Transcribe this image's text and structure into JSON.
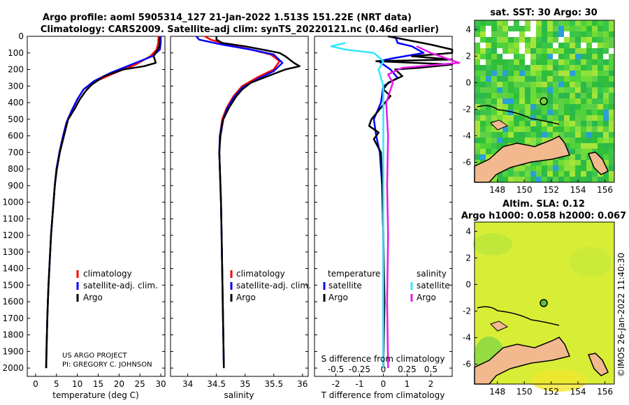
{
  "header": {
    "line1": "Argo profile: aoml 5905314_127 21-Jan-2022 1.513S 151.22E (NRT data)",
    "line2": "Climatology: CARS2009. Satellite-adj clim: synTS_20220121.nc (0.46d earlier)"
  },
  "colors": {
    "climatology": "#ff0000",
    "satellite": "#0000ff",
    "argo": "#000000",
    "sat_diff": "#33e6ff",
    "sal_diff": "#e619e6"
  },
  "chart_data": [
    {
      "type": "line",
      "panel": "temperature",
      "xlabel": "temperature (deg C)",
      "xlim": [
        -2,
        31
      ],
      "xticks": [
        0,
        5,
        10,
        15,
        20,
        25,
        30
      ],
      "ylim": [
        0,
        2050
      ],
      "yticks": [
        0,
        100,
        200,
        300,
        400,
        500,
        600,
        700,
        800,
        900,
        1000,
        1100,
        1200,
        1300,
        1400,
        1500,
        1600,
        1700,
        1800,
        1900,
        2000
      ],
      "legend": [
        "climatology",
        "satellite-adj. clim.",
        "Argo"
      ],
      "series": [
        {
          "name": "climatology",
          "points": [
            [
              29.5,
              0
            ],
            [
              29.4,
              40
            ],
            [
              29.0,
              80
            ],
            [
              27.5,
              120
            ],
            [
              24,
              170
            ],
            [
              19,
              220
            ],
            [
              14.5,
              270
            ],
            [
              11.5,
              320
            ],
            [
              10,
              380
            ],
            [
              8.6,
              450
            ],
            [
              7.4,
              520
            ],
            [
              6.6,
              600
            ],
            [
              5.7,
              700
            ],
            [
              5.0,
              800
            ],
            [
              4.6,
              900
            ],
            [
              4.3,
              1000
            ],
            [
              4.0,
              1100
            ],
            [
              3.7,
              1200
            ],
            [
              3.5,
              1300
            ],
            [
              3.3,
              1400
            ],
            [
              3.1,
              1500
            ],
            [
              2.95,
              1600
            ],
            [
              2.8,
              1700
            ],
            [
              2.7,
              1800
            ],
            [
              2.6,
              1900
            ],
            [
              2.5,
              2000
            ]
          ]
        },
        {
          "name": "satellite-adj. clim.",
          "points": [
            [
              30.0,
              0
            ],
            [
              30.0,
              40
            ],
            [
              29.8,
              80
            ],
            [
              28,
              120
            ],
            [
              23,
              170
            ],
            [
              18,
              220
            ],
            [
              14.0,
              270
            ],
            [
              11.5,
              320
            ],
            [
              10,
              380
            ],
            [
              8.6,
              450
            ],
            [
              7.4,
              520
            ],
            [
              6.6,
              600
            ],
            [
              5.7,
              700
            ],
            [
              5.0,
              800
            ],
            [
              4.6,
              900
            ],
            [
              4.3,
              1000
            ],
            [
              4.0,
              1100
            ],
            [
              3.7,
              1200
            ],
            [
              3.5,
              1300
            ],
            [
              3.3,
              1400
            ],
            [
              3.1,
              1500
            ],
            [
              2.95,
              1600
            ],
            [
              2.8,
              1700
            ],
            [
              2.7,
              1800
            ],
            [
              2.6,
              1900
            ],
            [
              2.5,
              2000
            ]
          ]
        },
        {
          "name": "Argo",
          "points": [
            [
              29.7,
              5
            ],
            [
              29.7,
              60
            ],
            [
              29.0,
              90
            ],
            [
              28.3,
              120
            ],
            [
              28.8,
              160
            ],
            [
              26,
              180
            ],
            [
              21,
              200
            ],
            [
              16.5,
              240
            ],
            [
              13.5,
              290
            ],
            [
              12,
              330
            ],
            [
              10.6,
              380
            ],
            [
              9.3,
              440
            ],
            [
              7.8,
              500
            ],
            [
              7.2,
              560
            ],
            [
              6.6,
              620
            ],
            [
              5.8,
              700
            ],
            [
              5.1,
              800
            ],
            [
              4.6,
              900
            ],
            [
              4.3,
              1000
            ],
            [
              4.0,
              1100
            ],
            [
              3.7,
              1200
            ],
            [
              3.5,
              1300
            ],
            [
              3.3,
              1400
            ],
            [
              3.1,
              1500
            ],
            [
              2.95,
              1600
            ],
            [
              2.8,
              1700
            ],
            [
              2.7,
              1800
            ],
            [
              2.6,
              1900
            ],
            [
              2.55,
              2000
            ]
          ]
        }
      ]
    },
    {
      "type": "line",
      "panel": "salinity",
      "xlabel": "salinity",
      "xlim": [
        33.7,
        36.1
      ],
      "xticks": [
        34,
        34.5,
        35,
        35.5,
        36
      ],
      "ylim": [
        0,
        2050
      ],
      "legend": [
        "climatology",
        "satellite-adj. clim.",
        "Argo"
      ],
      "series": [
        {
          "name": "climatology",
          "points": [
            [
              34.3,
              0
            ],
            [
              34.4,
              20
            ],
            [
              34.7,
              50
            ],
            [
              35.1,
              80
            ],
            [
              35.45,
              110
            ],
            [
              35.6,
              150
            ],
            [
              35.5,
              200
            ],
            [
              35.2,
              250
            ],
            [
              34.95,
              300
            ],
            [
              34.8,
              360
            ],
            [
              34.68,
              430
            ],
            [
              34.6,
              500
            ],
            [
              34.56,
              600
            ],
            [
              34.55,
              700
            ],
            [
              34.56,
              800
            ],
            [
              34.57,
              900
            ],
            [
              34.58,
              1000
            ],
            [
              34.59,
              1200
            ],
            [
              34.6,
              1400
            ],
            [
              34.61,
              1600
            ],
            [
              34.62,
              1800
            ],
            [
              34.63,
              2000
            ]
          ]
        },
        {
          "name": "satellite-adj. clim.",
          "points": [
            [
              34.15,
              0
            ],
            [
              34.2,
              20
            ],
            [
              34.6,
              50
            ],
            [
              35.1,
              80
            ],
            [
              35.5,
              110
            ],
            [
              35.65,
              160
            ],
            [
              35.5,
              210
            ],
            [
              35.2,
              260
            ],
            [
              34.95,
              310
            ],
            [
              34.8,
              370
            ],
            [
              34.68,
              440
            ],
            [
              34.6,
              520
            ],
            [
              34.56,
              600
            ],
            [
              34.55,
              700
            ],
            [
              34.56,
              800
            ],
            [
              34.57,
              900
            ],
            [
              34.58,
              1000
            ],
            [
              34.59,
              1200
            ],
            [
              34.6,
              1400
            ],
            [
              34.61,
              1600
            ],
            [
              34.62,
              1800
            ],
            [
              34.63,
              2000
            ]
          ]
        },
        {
          "name": "Argo",
          "points": [
            [
              34.5,
              0
            ],
            [
              34.5,
              20
            ],
            [
              34.6,
              40
            ],
            [
              35.0,
              60
            ],
            [
              35.3,
              80
            ],
            [
              35.6,
              100
            ],
            [
              35.7,
              120
            ],
            [
              35.85,
              160
            ],
            [
              35.95,
              180
            ],
            [
              35.7,
              200
            ],
            [
              35.4,
              240
            ],
            [
              35.1,
              280
            ],
            [
              34.95,
              320
            ],
            [
              34.85,
              360
            ],
            [
              34.72,
              430
            ],
            [
              34.62,
              500
            ],
            [
              34.57,
              600
            ],
            [
              34.55,
              700
            ],
            [
              34.56,
              800
            ],
            [
              34.57,
              900
            ],
            [
              34.58,
              1000
            ],
            [
              34.59,
              1200
            ],
            [
              34.6,
              1400
            ],
            [
              34.61,
              1600
            ],
            [
              34.62,
              1800
            ],
            [
              34.63,
              2000
            ]
          ]
        }
      ]
    },
    {
      "type": "line",
      "panel": "differences",
      "xlabel": "T difference from climatology",
      "xlabel_top": "S difference from climatology",
      "xlim": [
        -2.9,
        2.9
      ],
      "xticks": [
        -2,
        -1,
        0,
        1,
        2
      ],
      "xticks_s": [
        "-0.5",
        "-0.25",
        "0",
        "0.25",
        "0.5"
      ],
      "ylim": [
        0,
        2050
      ],
      "legend_left_title": "temperature",
      "legend_right_title": "salinity",
      "legend_left": [
        "satellite",
        "Argo"
      ],
      "legend_right": [
        "satellite",
        "Argo"
      ],
      "series": [
        {
          "name": "T satellite",
          "points": [
            [
              0.5,
              0
            ],
            [
              0.6,
              40
            ],
            [
              1.2,
              60
            ],
            [
              1.7,
              100
            ],
            [
              0.5,
              130
            ],
            [
              -0.2,
              150
            ],
            [
              0.3,
              200
            ],
            [
              0.6,
              250
            ],
            [
              0.0,
              300
            ],
            [
              -0.1,
              400
            ],
            [
              -0.4,
              500
            ],
            [
              -0.3,
              600
            ],
            [
              -0.15,
              700
            ],
            [
              -0.05,
              900
            ],
            [
              0,
              1200
            ],
            [
              0,
              1600
            ],
            [
              0,
              2000
            ]
          ]
        },
        {
          "name": "T Argo",
          "points": [
            [
              0.2,
              0
            ],
            [
              2.0,
              50
            ],
            [
              2.9,
              80
            ],
            [
              2.9,
              100
            ],
            [
              1.2,
              120
            ],
            [
              2.9,
              140
            ],
            [
              -0.3,
              150
            ],
            [
              2.9,
              170
            ],
            [
              1.5,
              190
            ],
            [
              0.5,
              200
            ],
            [
              0.8,
              240
            ],
            [
              0.2,
              280
            ],
            [
              0.0,
              320
            ],
            [
              0.3,
              360
            ],
            [
              -0.5,
              500
            ],
            [
              -0.6,
              540
            ],
            [
              -0.2,
              580
            ],
            [
              -0.4,
              620
            ],
            [
              -0.1,
              700
            ],
            [
              -0.05,
              900
            ],
            [
              0,
              1200
            ],
            [
              0.05,
              1600
            ],
            [
              0,
              2000
            ]
          ]
        },
        {
          "name": "S satellite",
          "points": [
            [
              -0.4,
              40
            ],
            [
              -0.55,
              60
            ],
            [
              -0.4,
              80
            ],
            [
              -0.1,
              100
            ],
            [
              0.0,
              150
            ],
            [
              -0.05,
              200
            ],
            [
              0.0,
              300
            ],
            [
              0,
              400
            ],
            [
              0,
              600
            ],
            [
              0,
              900
            ],
            [
              0,
              1200
            ],
            [
              0,
              1600
            ],
            [
              0,
              2000
            ]
          ]
        },
        {
          "name": "S Argo",
          "points": [
            [
              0.35,
              60
            ],
            [
              0.5,
              100
            ],
            [
              0.8,
              160
            ],
            [
              0.2,
              190
            ],
            [
              0.05,
              230
            ],
            [
              0.1,
              280
            ],
            [
              0.03,
              400
            ],
            [
              0.05,
              600
            ],
            [
              0.04,
              900
            ],
            [
              0.05,
              1200
            ],
            [
              0.04,
              1600
            ],
            [
              0.05,
              2000
            ]
          ]
        }
      ]
    }
  ],
  "maps": {
    "sst": {
      "title": "sat. SST: 30 Argo: 30",
      "lon_ticks": [
        "148",
        "150",
        "152",
        "154",
        "156"
      ],
      "lat_ticks": [
        "4",
        "2",
        "0",
        "-2",
        "-4",
        "-6"
      ]
    },
    "sla": {
      "title_line1": "Altim. SLA: 0.12",
      "title_line2": "Argo h1000: 0.058 h2000: 0.067",
      "lon_ticks": [
        "148",
        "150",
        "152",
        "154",
        "156"
      ],
      "lat_ticks": [
        "4",
        "2",
        "0",
        "-2",
        "-4",
        "-6"
      ]
    }
  },
  "credit": {
    "line1": "US ARGO PROJECT",
    "line2": "PI: GREGORY C. JOHNSON",
    "watermark": "©IMOS 26-Jan-2022 11:40:30"
  }
}
